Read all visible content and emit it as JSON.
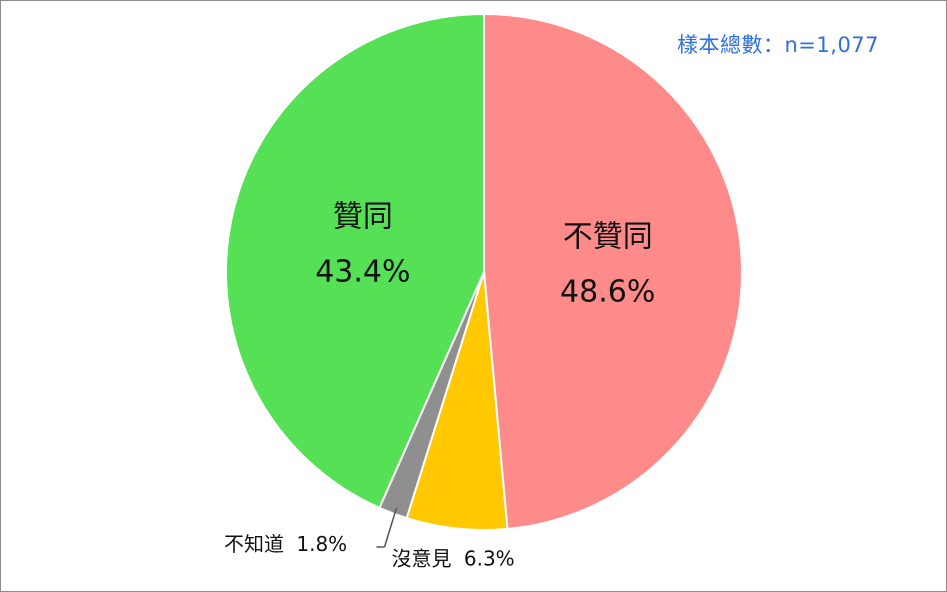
{
  "sample_note": "樣本總數：n=1,077",
  "chart_data": {
    "type": "pie",
    "title": "",
    "slices": [
      {
        "label": "不贊同",
        "value": 48.6,
        "value_label": "48.6%",
        "color": "#ff8a8a"
      },
      {
        "label": "沒意見",
        "value": 6.3,
        "value_label": "6.3%",
        "color": "#ffc800"
      },
      {
        "label": "不知道",
        "value": 1.8,
        "value_label": "1.8%",
        "color": "#8f8f8f"
      },
      {
        "label": "贊同",
        "value": 43.4,
        "value_label": "43.4%",
        "color": "#55e055"
      }
    ]
  }
}
